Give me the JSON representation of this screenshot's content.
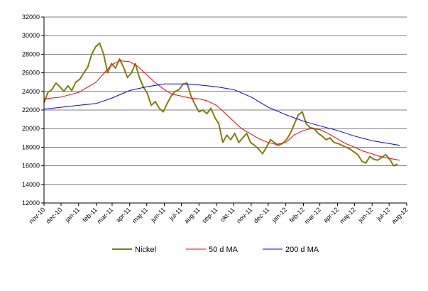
{
  "chart_data": {
    "type": "line",
    "title": "",
    "xlabel": "",
    "ylabel": "",
    "ylim": [
      12000,
      32000
    ],
    "yticks": [
      12000,
      14000,
      16000,
      18000,
      20000,
      22000,
      24000,
      26000,
      28000,
      30000,
      32000
    ],
    "xlim": [
      "2010-11-01",
      "2012-08-01"
    ],
    "xtick_labels": [
      "nov-10",
      "dec-10",
      "jan-11",
      "feb-11",
      "mar-11",
      "apr-11",
      "maj-11",
      "jun-11",
      "jul-11",
      "aug-11",
      "sep-11",
      "okt-11",
      "nov-11",
      "dec-11",
      "jan-12",
      "feb-12",
      "mar-12",
      "apr-12",
      "maj-12",
      "jun-12",
      "jul-12",
      "aug-12"
    ],
    "grid": "horizontal",
    "legend": "bottom",
    "series": [
      {
        "name": "Nickel",
        "color": "#808000",
        "x": [
          "2010-11-01",
          "2010-11-08",
          "2010-11-15",
          "2010-11-22",
          "2010-11-29",
          "2010-12-06",
          "2010-12-13",
          "2010-12-20",
          "2010-12-27",
          "2011-01-03",
          "2011-01-10",
          "2011-01-17",
          "2011-01-24",
          "2011-01-31",
          "2011-02-07",
          "2011-02-14",
          "2011-02-21",
          "2011-02-28",
          "2011-03-07",
          "2011-03-14",
          "2011-03-21",
          "2011-03-28",
          "2011-04-04",
          "2011-04-11",
          "2011-04-18",
          "2011-04-25",
          "2011-05-02",
          "2011-05-09",
          "2011-05-16",
          "2011-05-23",
          "2011-05-30",
          "2011-06-06",
          "2011-06-13",
          "2011-06-20",
          "2011-06-27",
          "2011-07-04",
          "2011-07-11",
          "2011-07-18",
          "2011-07-25",
          "2011-08-01",
          "2011-08-08",
          "2011-08-15",
          "2011-08-22",
          "2011-08-29",
          "2011-09-05",
          "2011-09-12",
          "2011-09-19",
          "2011-09-26",
          "2011-10-03",
          "2011-10-10",
          "2011-10-17",
          "2011-10-24",
          "2011-10-31",
          "2011-11-07",
          "2011-11-14",
          "2011-11-21",
          "2011-11-28",
          "2011-12-05",
          "2011-12-12",
          "2011-12-19",
          "2011-12-26",
          "2012-01-02",
          "2012-01-09",
          "2012-01-16",
          "2012-01-23",
          "2012-01-30",
          "2012-02-06",
          "2012-02-13",
          "2012-02-20",
          "2012-02-27",
          "2012-03-05",
          "2012-03-12",
          "2012-03-19",
          "2012-03-26",
          "2012-04-02",
          "2012-04-09",
          "2012-04-16",
          "2012-04-23",
          "2012-04-30",
          "2012-05-07",
          "2012-05-14",
          "2012-05-21",
          "2012-05-28",
          "2012-06-04",
          "2012-06-11",
          "2012-06-18",
          "2012-06-25",
          "2012-07-02",
          "2012-07-09",
          "2012-07-16"
        ],
        "values": [
          22800,
          23900,
          24200,
          24900,
          24500,
          24000,
          24600,
          24100,
          25000,
          25300,
          26000,
          26600,
          28000,
          28800,
          29200,
          28000,
          26000,
          27000,
          26500,
          27500,
          26600,
          25500,
          26000,
          27000,
          25500,
          24500,
          23800,
          22500,
          22900,
          22200,
          21800,
          22700,
          23500,
          24000,
          24200,
          24800,
          24900,
          23500,
          22600,
          21800,
          22000,
          21600,
          22200,
          21200,
          20500,
          18500,
          19300,
          18800,
          19500,
          18500,
          19000,
          19500,
          18500,
          18200,
          17800,
          17300,
          18000,
          18800,
          18500,
          18200,
          18400,
          18800,
          19500,
          20500,
          21500,
          21800,
          20500,
          20100,
          20000,
          19500,
          19200,
          18800,
          19000,
          18500,
          18400,
          18200,
          18000,
          17800,
          17500,
          17200,
          16500,
          16300,
          17000,
          16700,
          16600,
          16900,
          17200,
          16700,
          16000,
          16200
        ]
      },
      {
        "name": "50 d MA",
        "color": "#ff0000",
        "x": [
          "2010-11-01",
          "2010-12-01",
          "2011-01-01",
          "2011-02-01",
          "2011-02-15",
          "2011-03-01",
          "2011-03-15",
          "2011-04-01",
          "2011-04-15",
          "2011-05-01",
          "2011-05-15",
          "2011-06-01",
          "2011-06-15",
          "2011-07-01",
          "2011-07-15",
          "2011-08-01",
          "2011-08-15",
          "2011-09-01",
          "2011-09-15",
          "2011-10-01",
          "2011-10-15",
          "2011-11-01",
          "2011-11-15",
          "2011-12-01",
          "2011-12-15",
          "2012-01-01",
          "2012-01-15",
          "2012-02-01",
          "2012-02-15",
          "2012-03-01",
          "2012-03-15",
          "2012-04-01",
          "2012-04-15",
          "2012-05-01",
          "2012-05-15",
          "2012-06-01",
          "2012-06-15",
          "2012-07-01",
          "2012-07-20"
        ],
        "values": [
          23200,
          23400,
          23900,
          25000,
          26000,
          26900,
          27300,
          27200,
          26700,
          25800,
          25000,
          24200,
          23700,
          23500,
          23300,
          23200,
          23000,
          22500,
          21700,
          20800,
          20000,
          19400,
          18900,
          18500,
          18300,
          18500,
          19300,
          19800,
          20000,
          19900,
          19500,
          18900,
          18400,
          18000,
          17600,
          17300,
          17000,
          16800,
          16600
        ]
      },
      {
        "name": "200 d MA",
        "color": "#0000ff",
        "x": [
          "2010-11-01",
          "2010-12-01",
          "2011-01-01",
          "2011-02-01",
          "2011-03-01",
          "2011-04-01",
          "2011-05-01",
          "2011-06-01",
          "2011-07-01",
          "2011-08-01",
          "2011-09-01",
          "2011-10-01",
          "2011-11-01",
          "2011-12-01",
          "2012-01-01",
          "2012-02-01",
          "2012-03-01",
          "2012-04-01",
          "2012-05-01",
          "2012-06-01",
          "2012-07-01",
          "2012-07-20"
        ],
        "values": [
          22100,
          22300,
          22500,
          22700,
          23300,
          24100,
          24500,
          24800,
          24800,
          24700,
          24500,
          24200,
          23400,
          22300,
          21500,
          20800,
          20300,
          19800,
          19200,
          18700,
          18400,
          18200
        ]
      }
    ]
  }
}
